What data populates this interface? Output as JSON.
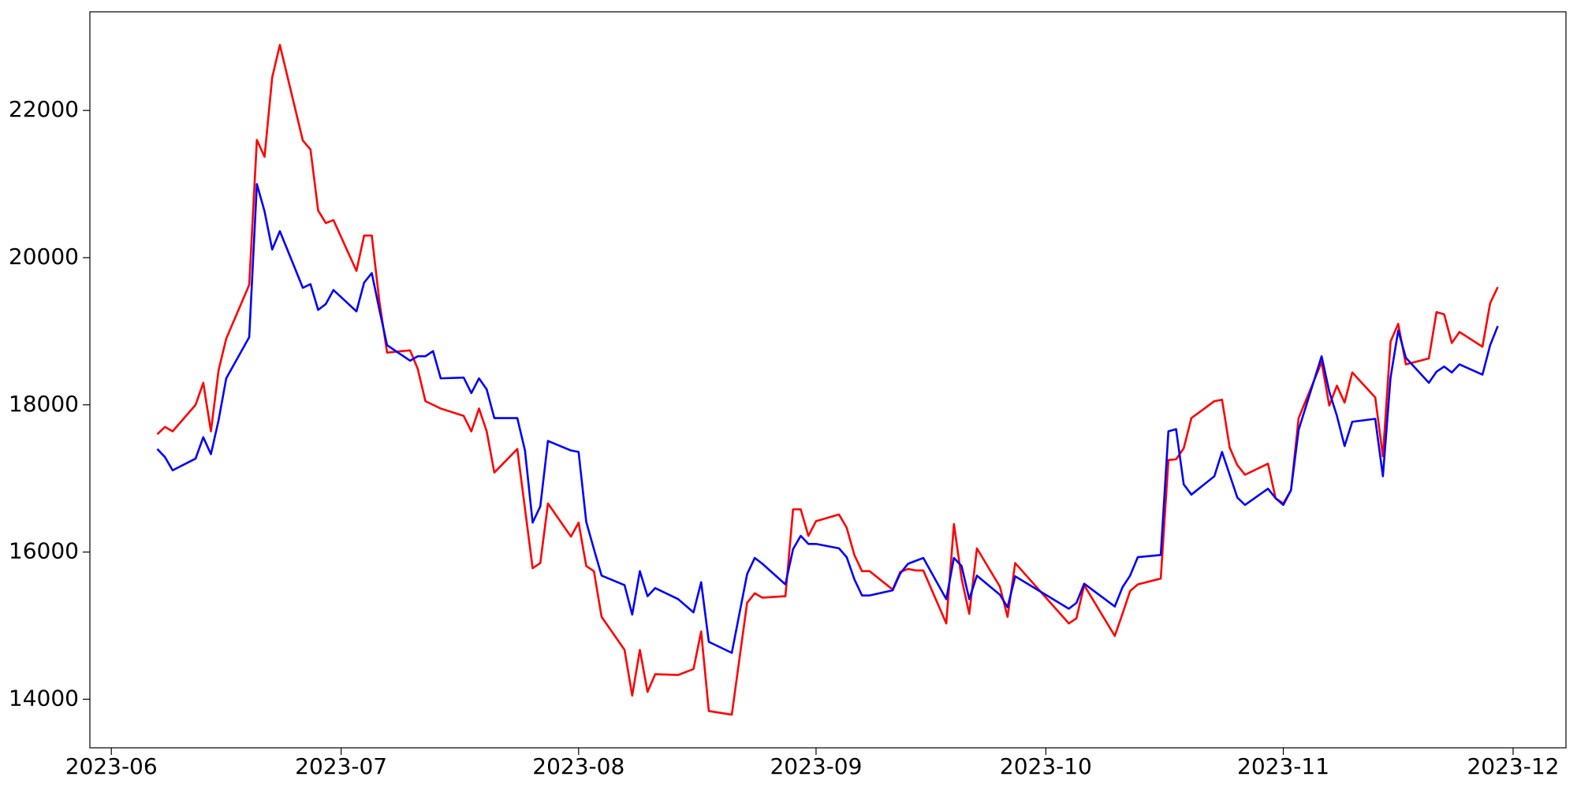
{
  "chart_data": {
    "type": "line",
    "x": [
      158,
      159,
      160,
      163,
      164,
      165,
      166,
      167,
      170,
      171,
      172,
      173,
      174,
      177,
      178,
      179,
      180,
      181,
      184,
      185,
      186,
      187,
      188,
      191,
      192,
      193,
      194,
      195,
      198,
      199,
      200,
      201,
      202,
      205,
      206,
      207,
      208,
      209,
      212,
      213,
      214,
      215,
      216,
      219,
      220,
      221,
      222,
      223,
      226,
      228,
      229,
      230,
      233,
      235,
      236,
      237,
      240,
      241,
      242,
      243,
      244,
      247,
      248,
      249,
      250,
      251,
      254,
      255,
      256,
      257,
      258,
      261,
      262,
      263,
      264,
      265,
      268,
      269,
      270,
      277,
      278,
      279,
      283,
      284,
      285,
      286,
      289,
      290,
      291,
      292,
      293,
      296,
      297,
      298,
      299,
      300,
      303,
      304,
      305,
      306,
      307,
      310,
      311,
      312,
      313,
      314,
      317,
      318,
      319,
      320,
      321,
      324,
      325,
      326,
      327,
      328,
      331,
      332,
      333
    ],
    "series": [
      {
        "color": "#ff0000",
        "values": [
          17600,
          17700,
          17640,
          18000,
          18300,
          17640,
          18470,
          18900,
          19630,
          21600,
          21370,
          22450,
          22890,
          21590,
          21470,
          20640,
          20470,
          20510,
          19820,
          20300,
          20300,
          19400,
          18710,
          18740,
          18490,
          18050,
          18000,
          17950,
          17850,
          17640,
          17950,
          17640,
          17080,
          17400,
          16590,
          15780,
          15850,
          16660,
          16210,
          16400,
          15810,
          15740,
          15120,
          14670,
          14050,
          14670,
          14100,
          14340,
          14330,
          14410,
          14920,
          13840,
          13790,
          15310,
          15440,
          15380,
          15400,
          16580,
          16580,
          16220,
          16420,
          16510,
          16330,
          15960,
          15740,
          15740,
          15490,
          15730,
          15770,
          15750,
          15750,
          15030,
          16380,
          15640,
          15160,
          16050,
          15530,
          15120,
          15850,
          15030,
          15100,
          15550,
          14860,
          15160,
          15470,
          15560,
          15640,
          17250,
          17260,
          17410,
          17820,
          18050,
          18070,
          17420,
          17180,
          17050,
          17200,
          16730,
          16660,
          16840,
          17820,
          18580,
          17990,
          18260,
          18030,
          18440,
          18100,
          17300,
          18860,
          19100,
          18550,
          18630,
          19260,
          19230,
          18840,
          18990,
          18790,
          19380,
          19600
        ]
      },
      {
        "color": "#0000ff",
        "values": [
          17400,
          17290,
          17110,
          17270,
          17560,
          17330,
          17790,
          18360,
          18920,
          21000,
          20630,
          20110,
          20360,
          19590,
          19640,
          19290,
          19370,
          19560,
          19270,
          19660,
          19790,
          19290,
          18810,
          18600,
          18660,
          18660,
          18730,
          18360,
          18370,
          18160,
          18360,
          18210,
          17820,
          17820,
          17380,
          16400,
          16620,
          17510,
          17380,
          17360,
          16410,
          16040,
          15680,
          15550,
          15150,
          15740,
          15400,
          15510,
          15360,
          15180,
          15590,
          14780,
          14630,
          15700,
          15920,
          15840,
          15560,
          16040,
          16220,
          16110,
          16110,
          16050,
          15930,
          15630,
          15410,
          15410,
          15480,
          15710,
          15840,
          15880,
          15920,
          15360,
          15920,
          15810,
          15360,
          15680,
          15420,
          15250,
          15670,
          15230,
          15310,
          15570,
          15260,
          15520,
          15680,
          15930,
          15960,
          17640,
          17670,
          16920,
          16780,
          17030,
          17360,
          17050,
          16740,
          16640,
          16860,
          16730,
          16640,
          16840,
          17660,
          18660,
          18180,
          17850,
          17440,
          17770,
          17810,
          17030,
          18370,
          19010,
          18640,
          18300,
          18450,
          18520,
          18440,
          18550,
          18410,
          18810,
          19070
        ]
      }
    ],
    "xlim": [
      149.2,
      341.9
    ],
    "xticks": [
      {
        "value": 152,
        "label": "2023-06"
      },
      {
        "value": 182,
        "label": "2023-07"
      },
      {
        "value": 213,
        "label": "2023-08"
      },
      {
        "value": 244,
        "label": "2023-09"
      },
      {
        "value": 274,
        "label": "2023-10"
      },
      {
        "value": 305,
        "label": "2023-11"
      },
      {
        "value": 335,
        "label": "2023-12"
      }
    ],
    "ylim": [
      13340,
      23340
    ],
    "yticks": [
      14000,
      16000,
      18000,
      20000,
      22000
    ],
    "grid": false
  }
}
